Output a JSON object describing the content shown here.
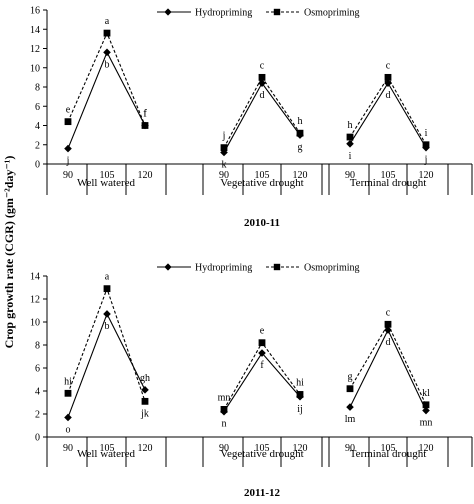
{
  "figure": {
    "ylabel": "Crop growth rate (CGR) (gm⁻²day⁻¹)"
  },
  "chart_data": [
    {
      "type": "line",
      "title": "2010-11",
      "ylim": [
        0,
        16
      ],
      "yticks": [
        0,
        2,
        4,
        6,
        8,
        10,
        12,
        14,
        16
      ],
      "legend_position": "top-center",
      "groups": [
        "Well watered",
        "Vegetative drought",
        "Terminal drought"
      ],
      "x": [
        "90",
        "105",
        "120"
      ],
      "series": [
        {
          "name": "Hydropriming",
          "line_style": "solid",
          "marker": "diamond",
          "values": [
            [
              1.6,
              11.6,
              4.0
            ],
            [
              1.2,
              8.4,
              3.0
            ],
            [
              2.1,
              8.4,
              1.7
            ]
          ],
          "letters": [
            [
              "j",
              "b",
              "f"
            ],
            [
              "k",
              "d",
              "g"
            ],
            [
              "i",
              "d",
              "j"
            ]
          ]
        },
        {
          "name": "Osmopriming",
          "line_style": "dashed",
          "marker": "square",
          "values": [
            [
              4.4,
              13.6,
              4.0
            ],
            [
              1.7,
              9.0,
              3.2
            ],
            [
              2.8,
              9.0,
              2.0
            ]
          ],
          "letters": [
            [
              "e",
              "a",
              "f"
            ],
            [
              "j",
              "c",
              "h"
            ],
            [
              "h",
              "c",
              "i"
            ]
          ]
        }
      ]
    },
    {
      "type": "line",
      "title": "2011-12",
      "ylim": [
        0,
        14
      ],
      "yticks": [
        0,
        2,
        4,
        6,
        8,
        10,
        12,
        14
      ],
      "legend_position": "top-center",
      "groups": [
        "Well watered",
        "Vegetative drought",
        "Terminal drought"
      ],
      "x": [
        "90",
        "105",
        "120"
      ],
      "series": [
        {
          "name": "Hydropriming",
          "line_style": "solid",
          "marker": "diamond",
          "values": [
            [
              1.7,
              10.7,
              4.1
            ],
            [
              2.2,
              7.3,
              3.5
            ],
            [
              2.6,
              9.3,
              2.3
            ]
          ],
          "letters": [
            [
              "o",
              "b",
              "gh"
            ],
            [
              "n",
              "f",
              "ij"
            ],
            [
              "lm",
              "d",
              "mn"
            ]
          ]
        },
        {
          "name": "Osmopriming",
          "line_style": "dashed",
          "marker": "square",
          "values": [
            [
              3.8,
              12.9,
              3.1
            ],
            [
              2.4,
              8.2,
              3.7
            ],
            [
              4.2,
              9.8,
              2.8
            ]
          ],
          "letters": [
            [
              "hi",
              "a",
              "jk"
            ],
            [
              "mn",
              "e",
              "hi"
            ],
            [
              "g",
              "c",
              "kl"
            ]
          ]
        }
      ]
    }
  ]
}
